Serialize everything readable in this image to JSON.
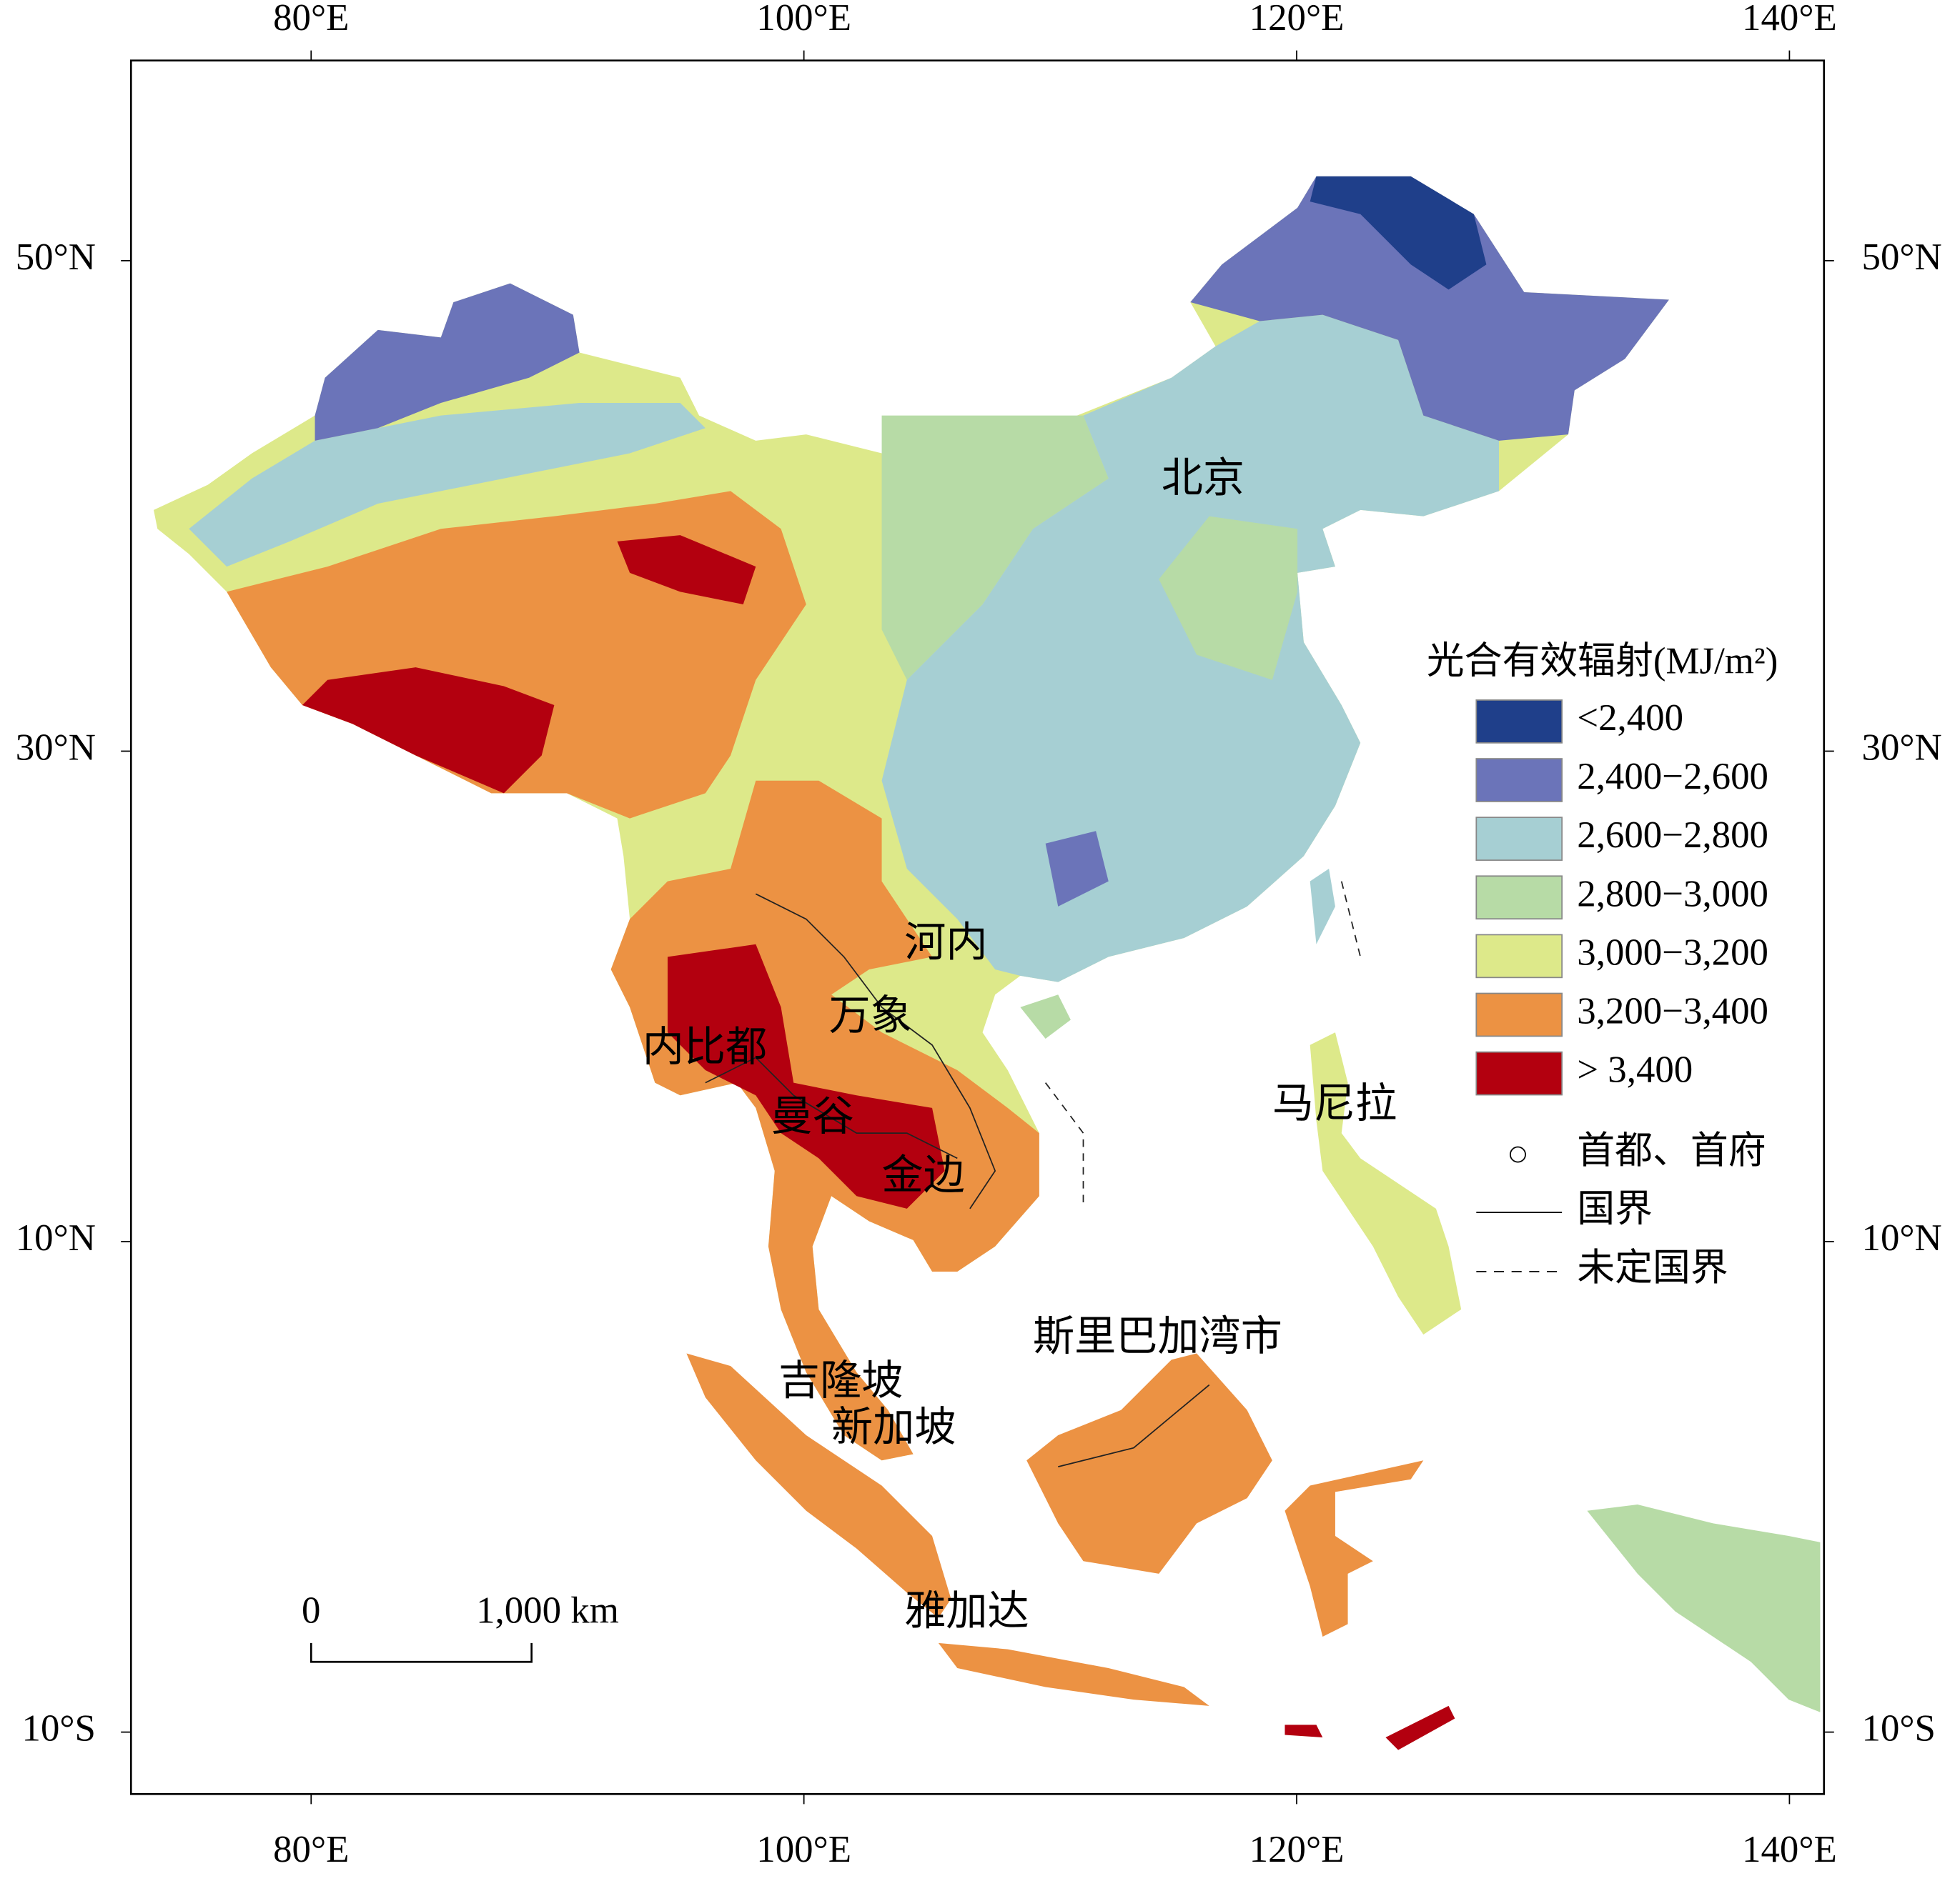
{
  "map": {
    "lon_ticks": [
      {
        "value": 80,
        "label": "80°E"
      },
      {
        "value": 100,
        "label": "100°E"
      },
      {
        "value": 120,
        "label": "120°E"
      },
      {
        "value": 140,
        "label": "140°E"
      }
    ],
    "lat_ticks": [
      {
        "value": 50,
        "label": "50°N"
      },
      {
        "value": 30,
        "label": "30°N"
      },
      {
        "value": 10,
        "label": "10°N"
      },
      {
        "value": -10,
        "label": "10°S"
      }
    ],
    "legend": {
      "title": "光合有效辐射(MJ/m²)",
      "classes": [
        {
          "label": "<2,400",
          "color": "#1f3f8a"
        },
        {
          "label": "2,400−2,600",
          "color": "#6b74b9"
        },
        {
          "label": "2,600−2,800",
          "color": "#a6cfd3"
        },
        {
          "label": "2,800−3,000",
          "color": "#b7dba6"
        },
        {
          "label": "3,000−3,200",
          "color": "#dde98a"
        },
        {
          "label": "3,200−3,400",
          "color": "#ec9243"
        },
        {
          "label": "> 3,400",
          "color": "#b3000f"
        }
      ],
      "symbols": [
        "首都、首府",
        "国界",
        "未定国界"
      ]
    },
    "cities": [
      "北京",
      "河内",
      "万象",
      "内比都",
      "曼谷",
      "金边",
      "马尼拉",
      "斯里巴加湾市",
      "吉隆坡",
      "新加坡",
      "雅加达"
    ],
    "scale_bar": [
      "0",
      "1,000 km"
    ]
  }
}
